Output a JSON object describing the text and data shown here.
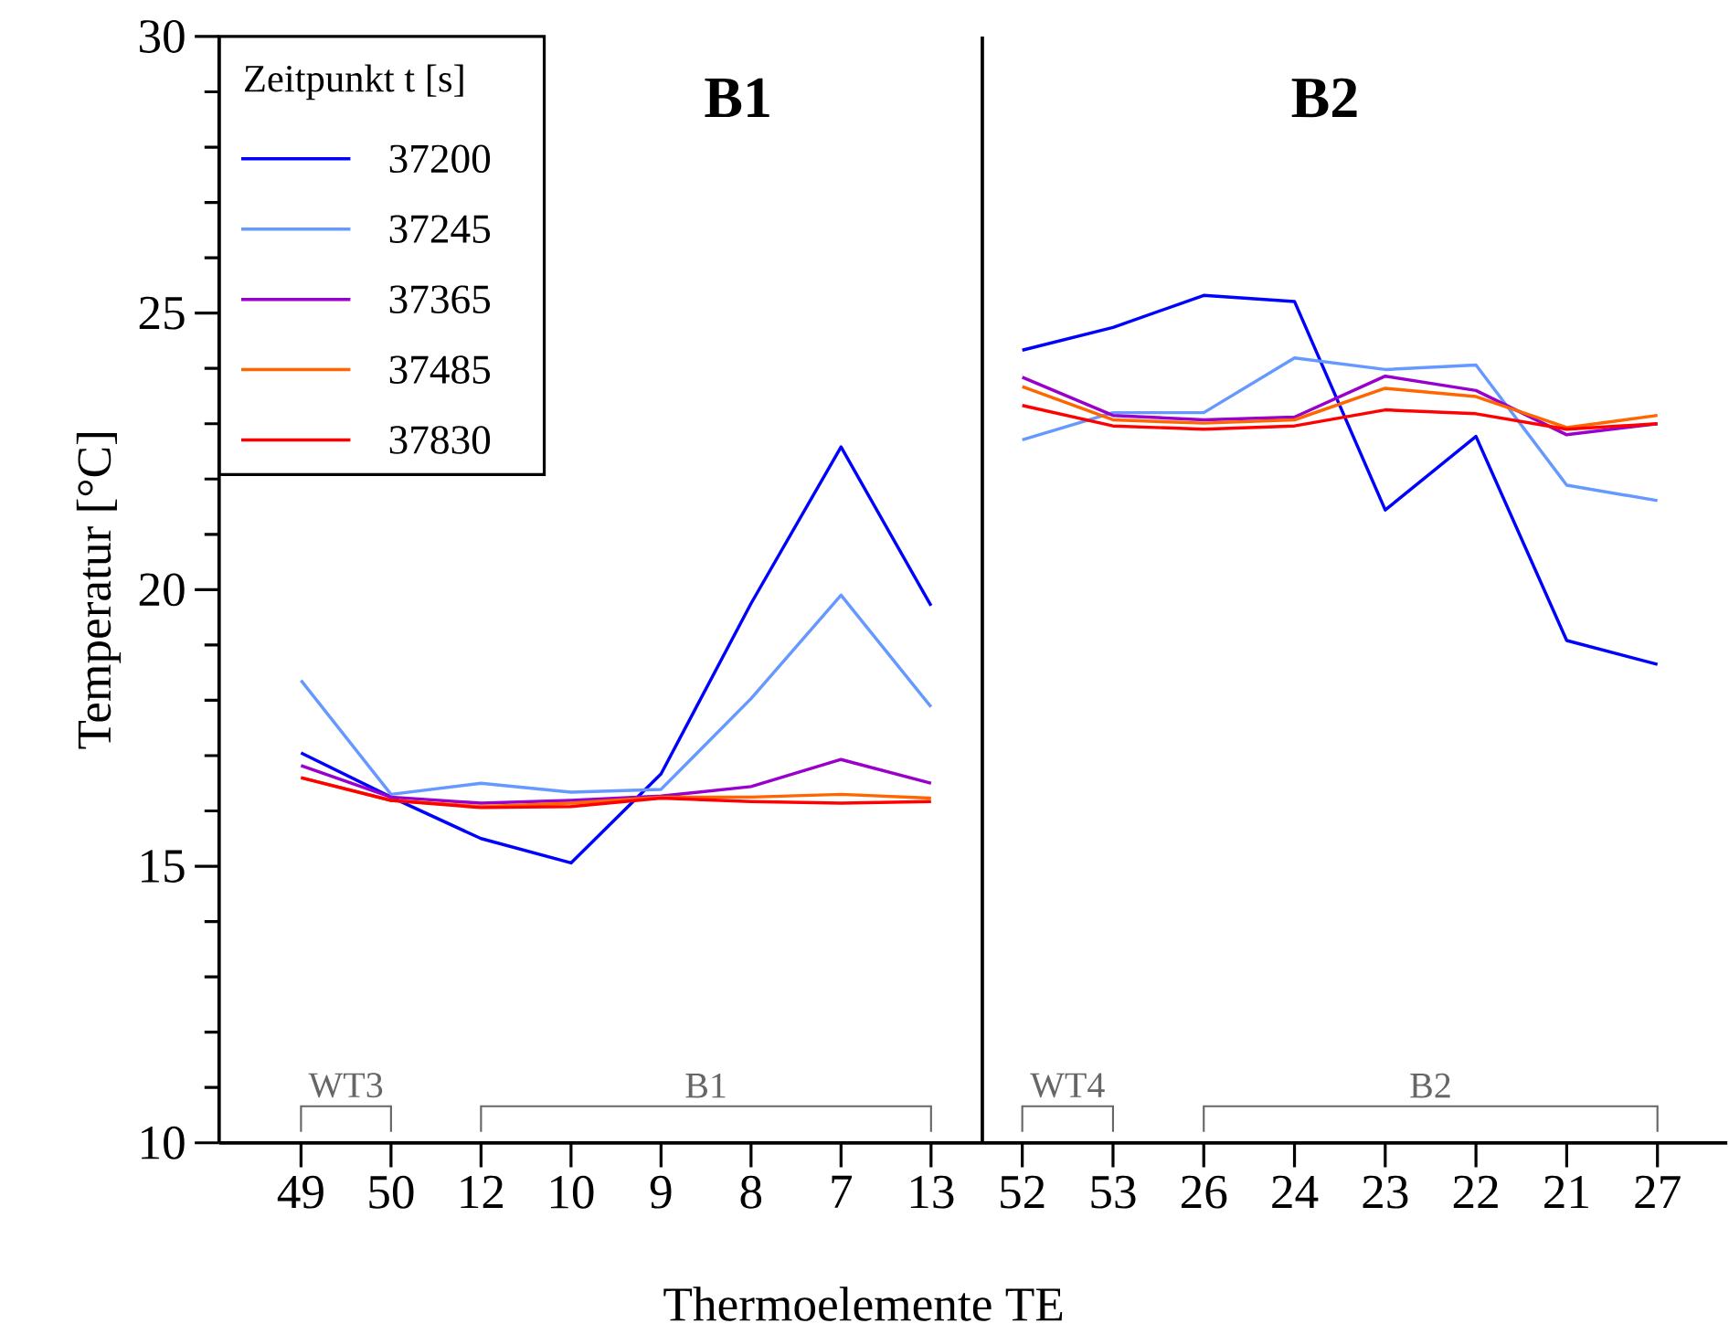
{
  "chart_data": [
    {
      "type": "line",
      "title": "B1",
      "ylabel": "Temperatur [°C]",
      "legend_title": "Zeitpunkt t [s]",
      "legend": "top left",
      "categories": [
        "49",
        "50",
        "12",
        "10",
        "9",
        "8",
        "7",
        "13"
      ],
      "ylim": [
        10,
        30
      ],
      "yticks": [
        10,
        15,
        20,
        25,
        30
      ],
      "annotations": [
        "WT3",
        "B1"
      ],
      "series": [
        {
          "name": "37200",
          "color": "#0000ff",
          "values": [
            17.05,
            16.25,
            15.5,
            15.06,
            16.67,
            19.75,
            22.58,
            19.71
          ]
        },
        {
          "name": "37245",
          "color": "#6699ff",
          "values": [
            18.36,
            16.3,
            16.5,
            16.34,
            16.39,
            18.03,
            19.9,
            17.88
          ]
        },
        {
          "name": "37365",
          "color": "#9900cc",
          "values": [
            16.82,
            16.25,
            16.14,
            16.19,
            16.27,
            16.44,
            16.93,
            16.5
          ]
        },
        {
          "name": "37485",
          "color": "#ff6600",
          "values": [
            16.6,
            16.19,
            16.08,
            16.14,
            16.25,
            16.25,
            16.3,
            16.23
          ]
        },
        {
          "name": "37830",
          "color": "#ff0000",
          "values": [
            16.6,
            16.19,
            16.06,
            16.08,
            16.23,
            16.17,
            16.14,
            16.17
          ]
        }
      ]
    },
    {
      "type": "line",
      "title": "B2",
      "xlabel": "Thermoelemente TE",
      "tick_labels": "x",
      "categories": [
        "52",
        "53",
        "26",
        "24",
        "23",
        "22",
        "21",
        "27"
      ],
      "ylim": [
        10,
        30
      ],
      "annotations": [
        "WT4",
        "B2"
      ],
      "series": [
        {
          "color": "#0000ff",
          "values": [
            24.33,
            24.74,
            25.32,
            25.21,
            21.44,
            22.77,
            19.08,
            18.65
          ]
        },
        {
          "color": "#6699ff",
          "values": [
            22.71,
            23.2,
            23.2,
            24.19,
            23.98,
            24.06,
            21.89,
            21.61
          ]
        },
        {
          "color": "#9900cc",
          "values": [
            23.84,
            23.15,
            23.07,
            23.12,
            23.86,
            23.6,
            22.8,
            23.0
          ]
        },
        {
          "color": "#ff6600",
          "values": [
            23.67,
            23.07,
            23.01,
            23.07,
            23.64,
            23.49,
            22.93,
            23.15
          ]
        },
        {
          "color": "#ff0000",
          "values": [
            23.33,
            22.96,
            22.9,
            22.96,
            23.25,
            23.18,
            22.9,
            23.0
          ]
        }
      ]
    }
  ]
}
